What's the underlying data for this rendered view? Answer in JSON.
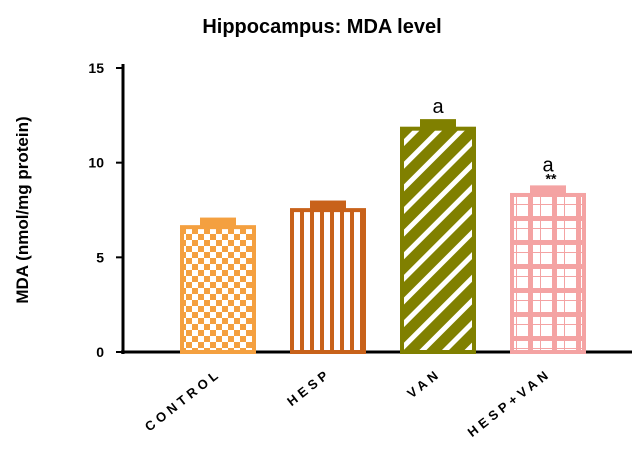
{
  "chart_data": {
    "type": "bar",
    "title": "Hippocampus: MDA level",
    "ylabel": "MDA (nmol/mg protein)",
    "xlabel": "",
    "ylim": [
      0,
      15
    ],
    "yticks": [
      0,
      5,
      10,
      15
    ],
    "grid": false,
    "categories": [
      "CONTROL",
      "HESP",
      "VAN",
      "HESP+VAN"
    ],
    "values": [
      6.7,
      7.6,
      11.9,
      8.4
    ],
    "errors": [
      0.4,
      0.4,
      0.4,
      0.4
    ],
    "annotations": [
      "",
      "",
      "a",
      "a\n**"
    ],
    "colors": {
      "CONTROL": "#F4A040",
      "HESP": "#C8621A",
      "VAN": "#808000",
      "HESP+VAN": "#F4A3A3"
    },
    "patterns": [
      "checkerboard",
      "vertical-stripes",
      "diagonal-stripes",
      "plaid"
    ]
  }
}
